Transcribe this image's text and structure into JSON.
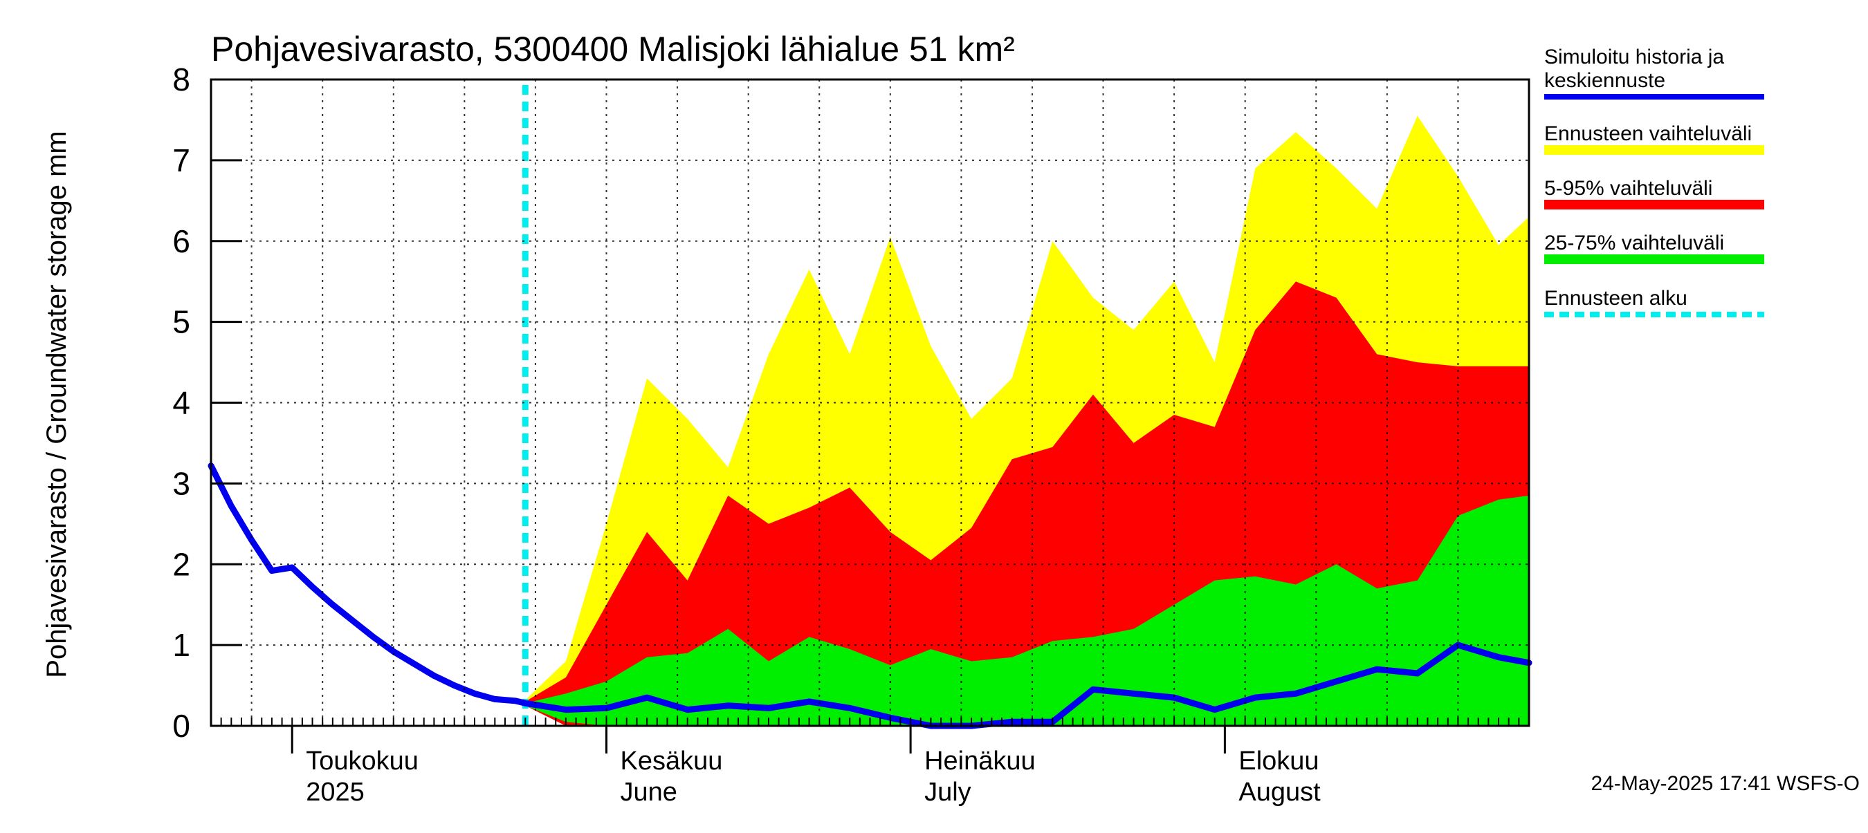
{
  "chart_data": {
    "type": "area",
    "title": "Pohjavesivarasto, 5300400 Malisjoki lähialue 51 km²",
    "ylabel": "Pohjavesivarasto / Groundwater storage   mm",
    "ylim": [
      0,
      8
    ],
    "yticks": [
      0,
      1,
      2,
      3,
      4,
      5,
      6,
      7,
      8
    ],
    "xlim": [
      "2025-04-23",
      "2025-08-31"
    ],
    "month_labels": [
      {
        "date": "2025-05-01",
        "fi": "Toukokuu",
        "en": "2025"
      },
      {
        "date": "2025-06-01",
        "fi": "Kesäkuu",
        "en": "June"
      },
      {
        "date": "2025-07-01",
        "fi": "Heinäkuu",
        "en": "July"
      },
      {
        "date": "2025-08-01",
        "fi": "Elokuu",
        "en": "August"
      }
    ],
    "forecast_start": "2025-05-24",
    "timestamp": "24-May-2025 17:41 WSFS-O",
    "colors": {
      "history": "#0000ee",
      "range": "#ffff00",
      "p5_95": "#ff0000",
      "p25_75": "#00ee00",
      "forecast_start": "#00eeee"
    },
    "legend": [
      {
        "key": "history",
        "label": [
          "Simuloitu historia ja",
          "keskiennuste"
        ]
      },
      {
        "key": "range",
        "label": [
          "Ennusteen vaihteluväli"
        ]
      },
      {
        "key": "p5_95",
        "label": [
          "5-95% vaihteluväli"
        ]
      },
      {
        "key": "p25_75",
        "label": [
          "25-75% vaihteluväli"
        ]
      },
      {
        "key": "forecast_start",
        "label": [
          "Ennusteen alku"
        ]
      }
    ],
    "history": {
      "x": [
        "2025-04-23",
        "2025-04-25",
        "2025-04-27",
        "2025-04-29",
        "2025-05-01",
        "2025-05-03",
        "2025-05-05",
        "2025-05-07",
        "2025-05-09",
        "2025-05-11",
        "2025-05-13",
        "2025-05-15",
        "2025-05-17",
        "2025-05-19",
        "2025-05-21",
        "2025-05-23",
        "2025-05-24"
      ],
      "y": [
        3.22,
        2.72,
        2.3,
        1.92,
        1.96,
        1.72,
        1.5,
        1.3,
        1.1,
        0.92,
        0.77,
        0.62,
        0.5,
        0.4,
        0.33,
        0.31,
        0.28
      ]
    },
    "forecast": {
      "x": [
        "2025-05-24",
        "2025-05-28",
        "2025-06-01",
        "2025-06-05",
        "2025-06-09",
        "2025-06-13",
        "2025-06-17",
        "2025-06-21",
        "2025-06-25",
        "2025-06-29",
        "2025-07-03",
        "2025-07-07",
        "2025-07-11",
        "2025-07-15",
        "2025-07-19",
        "2025-07-23",
        "2025-07-27",
        "2025-07-31",
        "2025-08-04",
        "2025-08-08",
        "2025-08-12",
        "2025-08-16",
        "2025-08-20",
        "2025-08-24",
        "2025-08-28",
        "2025-08-31"
      ],
      "median": [
        0.28,
        0.2,
        0.22,
        0.35,
        0.2,
        0.25,
        0.22,
        0.3,
        0.22,
        0.1,
        0.0,
        0.0,
        0.05,
        0.05,
        0.45,
        0.4,
        0.35,
        0.2,
        0.35,
        0.4,
        0.55,
        0.7,
        0.65,
        1.0,
        0.85,
        0.78
      ],
      "p25": [
        0.25,
        0.05,
        0.0,
        0.0,
        0.0,
        0.0,
        0.0,
        0.0,
        0.0,
        0.0,
        0.0,
        0.0,
        0.0,
        0.0,
        0.0,
        0.0,
        0.0,
        0.0,
        0.0,
        0.0,
        0.0,
        0.0,
        0.0,
        0.0,
        0.0,
        0.0
      ],
      "p75": [
        0.28,
        0.4,
        0.55,
        0.85,
        0.9,
        1.2,
        0.8,
        1.1,
        0.95,
        0.75,
        0.95,
        0.8,
        0.85,
        1.05,
        1.1,
        1.2,
        1.5,
        1.8,
        1.85,
        1.75,
        2.0,
        1.7,
        1.8,
        2.6,
        2.8,
        2.85
      ],
      "p5": [
        0.25,
        0.0,
        0.0,
        0.0,
        0.0,
        0.0,
        0.0,
        0.0,
        0.0,
        0.0,
        0.0,
        0.0,
        0.0,
        0.0,
        0.0,
        0.0,
        0.0,
        0.0,
        0.0,
        0.0,
        0.0,
        0.0,
        0.0,
        0.0,
        0.0,
        0.0
      ],
      "p95": [
        0.3,
        0.6,
        1.5,
        2.4,
        1.8,
        2.85,
        2.5,
        2.7,
        2.95,
        2.4,
        2.05,
        2.45,
        3.3,
        3.45,
        4.1,
        3.5,
        3.85,
        3.7,
        4.9,
        5.5,
        5.3,
        4.6,
        4.5,
        4.45,
        4.45,
        4.45
      ],
      "min": [
        0.25,
        0.0,
        0.0,
        0.0,
        0.0,
        0.0,
        0.0,
        0.0,
        0.0,
        0.0,
        0.0,
        0.0,
        0.0,
        0.0,
        0.0,
        0.0,
        0.0,
        0.0,
        0.0,
        0.0,
        0.0,
        0.0,
        0.0,
        0.0,
        0.0,
        0.0
      ],
      "max": [
        0.32,
        0.8,
        2.5,
        4.3,
        3.8,
        3.2,
        4.6,
        5.65,
        4.6,
        6.05,
        4.7,
        3.8,
        4.3,
        6.0,
        5.3,
        4.9,
        5.5,
        4.5,
        6.9,
        7.35,
        6.9,
        6.4,
        7.55,
        6.8,
        5.95,
        6.3
      ]
    }
  }
}
